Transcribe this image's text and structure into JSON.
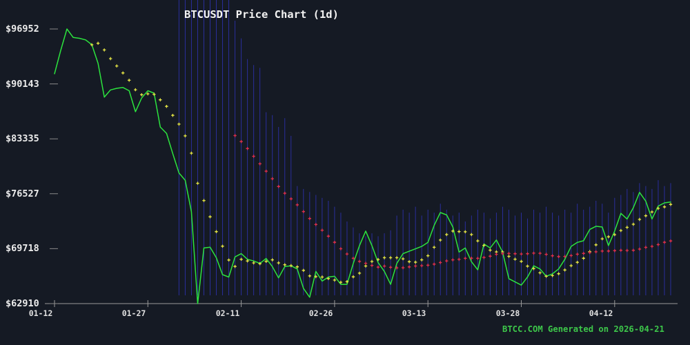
{
  "page": {
    "title": "BTCUSDT Price Chart (1d)",
    "watermark": "BTCC.COM Generated on 2026-04-21"
  },
  "colors": {
    "background": "#151a24",
    "price_line": "#2ce43e",
    "ma_fast": "#e6e645",
    "ma_slow": "#e0304e",
    "volume_bar": "#2a2e9c",
    "axis": "#9a9a9a",
    "tick_dash": "#8a8a8a",
    "labels": "#ececec",
    "watermark": "#3dc74a"
  },
  "chart_data": {
    "type": "line",
    "title": "BTCUSDT Price Chart (1d)",
    "symbol": "BTCUSDT",
    "interval": "1d",
    "xlabel": "",
    "ylabel": "",
    "grid": false,
    "legend_position": "none",
    "ylim": [
      62910,
      96952
    ],
    "y_tick_values": [
      96952,
      90143,
      83335,
      76527,
      69718,
      62910
    ],
    "y_tick_labels": [
      "$96952",
      "$90143",
      "$83335",
      "$76527",
      "$69718",
      "$62910"
    ],
    "x_tick_labels": [
      "01-12",
      "01-27",
      "02-11",
      "02-26",
      "03-13",
      "03-28",
      "04-12"
    ],
    "x_tick_day_indices": [
      0,
      15,
      30,
      45,
      60,
      75,
      90
    ],
    "series": [
      {
        "name": "close-price",
        "type": "line",
        "color": "#2ce43e",
        "values": [
          91400,
          94300,
          96952,
          95900,
          95800,
          95600,
          95000,
          92700,
          88500,
          89400,
          89600,
          89700,
          89300,
          86700,
          88400,
          89300,
          89000,
          84800,
          84000,
          81500,
          79100,
          78200,
          74300,
          62910,
          69800,
          69900,
          68600,
          66500,
          66200,
          68700,
          69100,
          68400,
          68200,
          67900,
          68500,
          67500,
          66100,
          67500,
          67600,
          67200,
          64800,
          63700,
          66900,
          65700,
          66200,
          66300,
          65300,
          65300,
          67900,
          70100,
          71900,
          70100,
          68000,
          66900,
          65300,
          67900,
          69100,
          69400,
          69700,
          70000,
          70500,
          72600,
          74200,
          73900,
          72400,
          69300,
          69800,
          68100,
          67100,
          70300,
          69800,
          70800,
          69300,
          66000,
          65600,
          65200,
          66200,
          67600,
          67200,
          66300,
          66600,
          67200,
          68400,
          70000,
          70500,
          70700,
          72100,
          72500,
          72400,
          70100,
          71900,
          74100,
          73400,
          74800,
          76700,
          75600,
          73400,
          75000,
          75400,
          75500
        ]
      },
      {
        "name": "ma-fast-dots",
        "type": "sma-dots",
        "window": 7,
        "color": "#e6e645"
      },
      {
        "name": "ma-slow-dots",
        "type": "sma-dots",
        "window": 30,
        "color": "#e0304e"
      }
    ],
    "volume": {
      "color": "#2a2e9c",
      "rel_heights": [
        0,
        0,
        0,
        0,
        0,
        0,
        0,
        0,
        0,
        0,
        0,
        0,
        0,
        0,
        0,
        0,
        0,
        0,
        0,
        0,
        1,
        1,
        1,
        1,
        1,
        1,
        1,
        1,
        1,
        0.93,
        0.87,
        0.8,
        0.78,
        0.77,
        0.62,
        0.61,
        0.57,
        0.6,
        0.54,
        0.37,
        0.36,
        0.35,
        0.34,
        0.33,
        0.32,
        0.3,
        0.28,
        0.25,
        0.23,
        0.21,
        0.2,
        0.21,
        0.2,
        0.21,
        0.22,
        0.27,
        0.29,
        0.28,
        0.3,
        0.27,
        0.29,
        0.28,
        0.31,
        0.29,
        0.27,
        0.28,
        0.25,
        0.27,
        0.29,
        0.28,
        0.26,
        0.28,
        0.3,
        0.29,
        0.27,
        0.28,
        0.26,
        0.29,
        0.28,
        0.3,
        0.28,
        0.27,
        0.29,
        0.28,
        0.31,
        0.29,
        0.3,
        0.32,
        0.31,
        0.28,
        0.33,
        0.34,
        0.36,
        0.35,
        0.38,
        0.37,
        0.36,
        0.39,
        0.37,
        0.38
      ]
    }
  }
}
